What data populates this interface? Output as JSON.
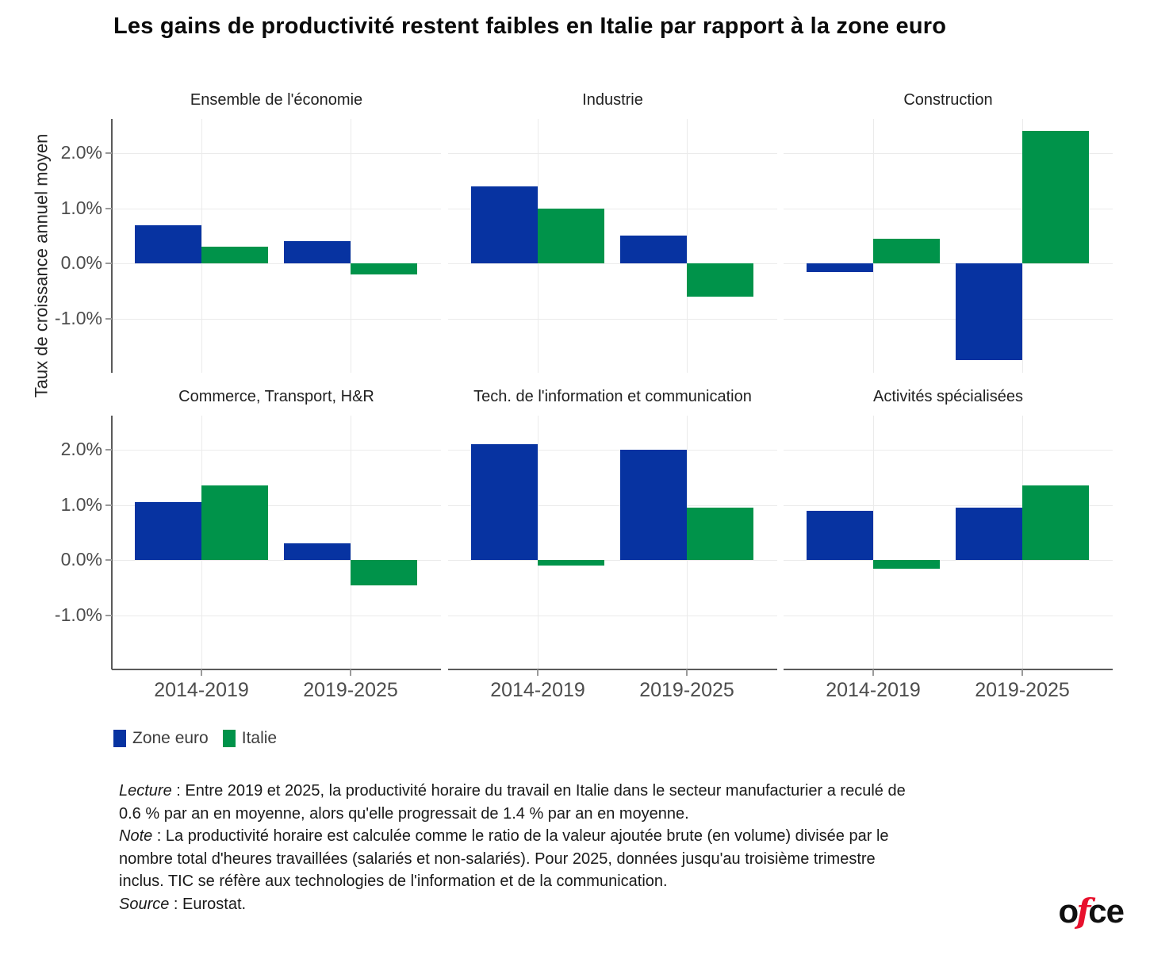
{
  "header": {
    "title": "Les gains de productivité restent faibles en Italie par rapport à la zone euro"
  },
  "colors": {
    "zone_euro": "#0733a1",
    "italie": "#00934a",
    "logo_accent": "#e8112d",
    "gridline": "#ebebeb"
  },
  "legend": {
    "items": [
      {
        "label": "Zone euro",
        "color": "#0733a1"
      },
      {
        "label": "Italie",
        "color": "#00934a"
      }
    ]
  },
  "chart_data": {
    "type": "bar",
    "categories": [
      "2014-2019",
      "2019-2025"
    ],
    "ylabel": "Taux de croissance annuel moyen",
    "y_ticks": [
      "2.0%",
      "1.0%",
      "0.0%",
      "-1.0%"
    ],
    "y_tick_values": [
      2,
      1,
      0,
      -1
    ],
    "ylim": [
      -1.98,
      2.62
    ],
    "grid": true,
    "legend_position": "bottom-left",
    "series_names": [
      "Zone euro",
      "Italie"
    ],
    "series_colors": [
      "#0733a1",
      "#00934a"
    ],
    "facets": [
      {
        "title": "Ensemble de l'économie",
        "series": [
          {
            "name": "Zone euro",
            "values": [
              0.7,
              0.4
            ]
          },
          {
            "name": "Italie",
            "values": [
              0.3,
              -0.2
            ]
          }
        ]
      },
      {
        "title": "Industrie",
        "series": [
          {
            "name": "Zone euro",
            "values": [
              1.4,
              0.5
            ]
          },
          {
            "name": "Italie",
            "values": [
              1.0,
              -0.6
            ]
          }
        ]
      },
      {
        "title": "Construction",
        "series": [
          {
            "name": "Zone euro",
            "values": [
              -0.15,
              -1.75
            ]
          },
          {
            "name": "Italie",
            "values": [
              0.45,
              2.4
            ]
          }
        ]
      },
      {
        "title": "Commerce, Transport, H&R",
        "series": [
          {
            "name": "Zone euro",
            "values": [
              1.05,
              0.3
            ]
          },
          {
            "name": "Italie",
            "values": [
              1.35,
              -0.45
            ]
          }
        ]
      },
      {
        "title": "Tech. de l'information et communication",
        "series": [
          {
            "name": "Zone euro",
            "values": [
              2.1,
              2.0
            ]
          },
          {
            "name": "Italie",
            "values": [
              -0.1,
              0.95
            ]
          }
        ]
      },
      {
        "title": "Activités spécialisées",
        "series": [
          {
            "name": "Zone euro",
            "values": [
              0.9,
              0.95
            ]
          },
          {
            "name": "Italie",
            "values": [
              -0.15,
              1.35
            ]
          }
        ]
      }
    ]
  },
  "notes": {
    "line1": {
      "lead": "Lecture",
      "rest": " : Entre 2019 et 2025, la productivité horaire du travail en Italie dans le secteur manufacturier a reculé de"
    },
    "line2": "0.6 % par an en moyenne, alors qu'elle progressait de 1.4 % par an en moyenne.",
    "line3": {
      "lead": "Note",
      "rest": " : La productivité horaire est calculée comme le ratio de la valeur ajoutée brute (en volume) divisée par le"
    },
    "line4": "nombre total d'heures travaillées (salariés et non-salariés). Pour 2025, données jusqu'au troisième trimestre",
    "line5": "inclus. TIC se réfère aux technologies de l'information et de la communication.",
    "line6": {
      "lead": "Source",
      "rest": " : Eurostat."
    }
  },
  "logo": {
    "part1": "o",
    "accent": "f",
    "part2": "ce"
  }
}
